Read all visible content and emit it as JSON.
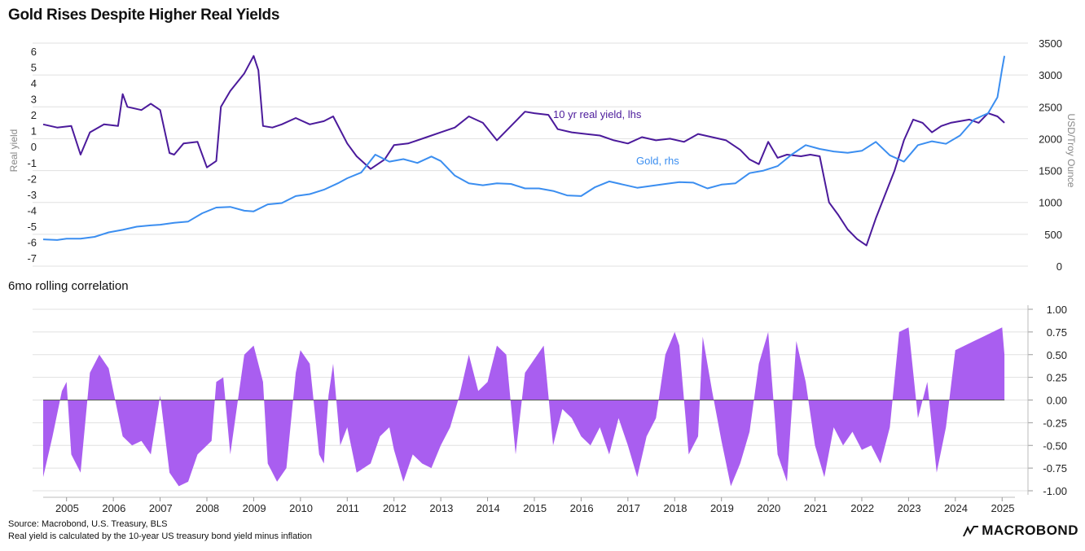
{
  "title": "Gold Rises Despite Higher Real Yields",
  "subtitle": "6mo rolling correlation",
  "footer": {
    "source": "Source: Macrobond, U.S. Treasury, BLS",
    "note": "Real yield is calculated by the 10-year US treasury bond yield minus inflation"
  },
  "logo": "MACROBOND",
  "colors": {
    "real_yield": "#4b1a9b",
    "gold": "#3b8ef0",
    "correlation": "#a95ef0",
    "grid": "#e0e0e0",
    "axis_text": "#222222",
    "axis_label": "#888888"
  },
  "chart_data": [
    {
      "type": "line",
      "ylabel_left": "Real yield",
      "ylabel_right": "USD/Troy Ounce",
      "ylim_left": [
        -7.5,
        6.5
      ],
      "ylim_right": [
        0,
        3500
      ],
      "yticks_left": [
        "6",
        "5",
        "4",
        "3",
        "2",
        "1",
        "0",
        "-1",
        "-2",
        "-3",
        "-4",
        "-5",
        "-6",
        "-7"
      ],
      "yticks_right": [
        "3500",
        "3000",
        "2500",
        "2000",
        "1500",
        "1000",
        "500",
        "0"
      ],
      "annotations": [
        "10 yr real yield, lhs",
        "Gold, rhs"
      ],
      "series": [
        {
          "name": "10 yr real yield, lhs",
          "axis": "left",
          "x": [
            2004.5,
            2004.8,
            2005.1,
            2005.3,
            2005.5,
            2005.8,
            2006.1,
            2006.2,
            2006.3,
            2006.6,
            2006.8,
            2007.0,
            2007.2,
            2007.3,
            2007.5,
            2007.8,
            2008.0,
            2008.2,
            2008.3,
            2008.5,
            2008.8,
            2009.0,
            2009.1,
            2009.2,
            2009.4,
            2009.6,
            2009.9,
            2010.2,
            2010.5,
            2010.7,
            2011.0,
            2011.2,
            2011.5,
            2011.8,
            2012.0,
            2012.3,
            2012.7,
            2013.0,
            2013.3,
            2013.6,
            2013.9,
            2014.2,
            2014.5,
            2014.8,
            2015.0,
            2015.3,
            2015.5,
            2015.8,
            2016.1,
            2016.4,
            2016.7,
            2017.0,
            2017.3,
            2017.6,
            2017.9,
            2018.2,
            2018.5,
            2018.8,
            2019.1,
            2019.4,
            2019.6,
            2019.8,
            2020.0,
            2020.2,
            2020.4,
            2020.7,
            2020.9,
            2021.1,
            2021.3,
            2021.5,
            2021.7,
            2021.9,
            2022.1,
            2022.3,
            2022.5,
            2022.7,
            2022.9,
            2023.1,
            2023.3,
            2023.5,
            2023.7,
            2023.9,
            2024.1,
            2024.3,
            2024.5,
            2024.7,
            2024.9,
            2025.05
          ],
          "values": [
            1.4,
            1.2,
            1.3,
            -0.5,
            0.9,
            1.4,
            1.3,
            3.3,
            2.5,
            2.3,
            2.7,
            2.3,
            -0.4,
            -0.5,
            0.2,
            0.3,
            -1.3,
            -0.9,
            2.5,
            3.5,
            4.6,
            5.7,
            4.8,
            1.3,
            1.2,
            1.4,
            1.8,
            1.4,
            1.6,
            1.9,
            0.2,
            -0.6,
            -1.4,
            -0.8,
            0.1,
            0.2,
            0.6,
            0.9,
            1.2,
            1.9,
            1.5,
            0.4,
            1.3,
            2.2,
            2.1,
            2.0,
            1.1,
            0.9,
            0.8,
            0.7,
            0.4,
            0.2,
            0.6,
            0.4,
            0.5,
            0.3,
            0.8,
            0.6,
            0.4,
            -0.2,
            -0.8,
            -1.1,
            0.3,
            -0.7,
            -0.5,
            -0.6,
            -0.5,
            -0.6,
            -3.5,
            -4.3,
            -5.2,
            -5.8,
            -6.2,
            -4.5,
            -3.0,
            -1.5,
            0.4,
            1.7,
            1.5,
            0.9,
            1.3,
            1.5,
            1.6,
            1.7,
            1.5,
            2.1,
            1.9,
            1.5
          ]
        },
        {
          "name": "Gold, rhs",
          "axis": "right",
          "x": [
            2004.5,
            2004.8,
            2005.0,
            2005.3,
            2005.6,
            2005.9,
            2006.2,
            2006.5,
            2006.8,
            2007.0,
            2007.3,
            2007.6,
            2007.9,
            2008.2,
            2008.5,
            2008.8,
            2009.0,
            2009.3,
            2009.6,
            2009.9,
            2010.2,
            2010.5,
            2010.8,
            2011.0,
            2011.3,
            2011.6,
            2011.9,
            2012.2,
            2012.5,
            2012.8,
            2013.0,
            2013.3,
            2013.6,
            2013.9,
            2014.2,
            2014.5,
            2014.8,
            2015.1,
            2015.4,
            2015.7,
            2016.0,
            2016.3,
            2016.6,
            2016.9,
            2017.2,
            2017.5,
            2017.8,
            2018.1,
            2018.4,
            2018.7,
            2019.0,
            2019.3,
            2019.6,
            2019.9,
            2020.2,
            2020.5,
            2020.8,
            2021.1,
            2021.4,
            2021.7,
            2022.0,
            2022.3,
            2022.6,
            2022.9,
            2023.2,
            2023.5,
            2023.8,
            2024.1,
            2024.4,
            2024.7,
            2024.9,
            2025.0,
            2025.05
          ],
          "values": [
            420,
            410,
            430,
            430,
            460,
            530,
            570,
            620,
            640,
            650,
            680,
            700,
            830,
            920,
            930,
            870,
            860,
            970,
            990,
            1100,
            1130,
            1200,
            1300,
            1380,
            1470,
            1750,
            1640,
            1680,
            1620,
            1720,
            1650,
            1420,
            1300,
            1270,
            1300,
            1290,
            1220,
            1220,
            1180,
            1110,
            1100,
            1240,
            1330,
            1280,
            1230,
            1260,
            1290,
            1320,
            1310,
            1220,
            1280,
            1300,
            1460,
            1500,
            1570,
            1750,
            1900,
            1840,
            1800,
            1780,
            1810,
            1950,
            1740,
            1640,
            1900,
            1960,
            1920,
            2050,
            2300,
            2400,
            2650,
            3100,
            3300
          ]
        }
      ]
    },
    {
      "type": "area",
      "ylim": [
        -1.0,
        1.0
      ],
      "yticks": [
        "1.00",
        "0.75",
        "0.50",
        "0.25",
        "0.00",
        "-0.25",
        "-0.50",
        "-0.75",
        "-1.00"
      ],
      "xticks": [
        "2005",
        "2006",
        "2007",
        "2008",
        "2009",
        "2010",
        "2011",
        "2012",
        "2013",
        "2014",
        "2015",
        "2016",
        "2017",
        "2018",
        "2019",
        "2020",
        "2021",
        "2022",
        "2023",
        "2024",
        "2025"
      ],
      "series": [
        {
          "name": "6mo rolling correlation",
          "x": [
            2004.5,
            2004.7,
            2004.9,
            2005.0,
            2005.1,
            2005.3,
            2005.5,
            2005.7,
            2005.9,
            2006.0,
            2006.2,
            2006.4,
            2006.6,
            2006.8,
            2007.0,
            2007.2,
            2007.4,
            2007.6,
            2007.8,
            2008.0,
            2008.1,
            2008.2,
            2008.35,
            2008.5,
            2008.8,
            2009.0,
            2009.2,
            2009.3,
            2009.5,
            2009.7,
            2009.9,
            2010.0,
            2010.2,
            2010.4,
            2010.5,
            2010.6,
            2010.7,
            2010.85,
            2011.0,
            2011.2,
            2011.5,
            2011.7,
            2011.9,
            2012.0,
            2012.2,
            2012.4,
            2012.6,
            2012.8,
            2013.0,
            2013.2,
            2013.4,
            2013.6,
            2013.8,
            2014.0,
            2014.2,
            2014.4,
            2014.6,
            2014.8,
            2015.0,
            2015.2,
            2015.4,
            2015.6,
            2015.8,
            2016.0,
            2016.2,
            2016.4,
            2016.6,
            2016.8,
            2017.0,
            2017.2,
            2017.4,
            2017.6,
            2017.8,
            2018.0,
            2018.1,
            2018.3,
            2018.5,
            2018.6,
            2018.8,
            2019.0,
            2019.2,
            2019.4,
            2019.6,
            2019.8,
            2020.0,
            2020.2,
            2020.4,
            2020.6,
            2020.8,
            2021.0,
            2021.2,
            2021.4,
            2021.6,
            2021.8,
            2022.0,
            2022.2,
            2022.4,
            2022.6,
            2022.8,
            2023.0,
            2023.2,
            2023.4,
            2023.6,
            2023.8,
            2024.0,
            2024.2,
            2024.4,
            2024.6,
            2024.8,
            2025.0,
            2025.05
          ],
          "values": [
            -0.85,
            -0.4,
            0.1,
            0.2,
            -0.6,
            -0.8,
            0.3,
            0.5,
            0.35,
            0.1,
            -0.4,
            -0.5,
            -0.45,
            -0.6,
            0.05,
            -0.8,
            -0.95,
            -0.9,
            -0.6,
            -0.5,
            -0.45,
            0.2,
            0.25,
            -0.6,
            0.5,
            0.6,
            0.2,
            -0.7,
            -0.9,
            -0.75,
            0.3,
            0.55,
            0.4,
            -0.6,
            -0.7,
            0.05,
            0.4,
            -0.5,
            -0.3,
            -0.8,
            -0.7,
            -0.4,
            -0.3,
            -0.55,
            -0.9,
            -0.6,
            -0.7,
            -0.75,
            -0.5,
            -0.3,
            0.05,
            0.5,
            0.1,
            0.2,
            0.6,
            0.5,
            -0.6,
            0.3,
            0.45,
            0.6,
            -0.5,
            -0.1,
            -0.2,
            -0.4,
            -0.5,
            -0.3,
            -0.6,
            -0.2,
            -0.5,
            -0.85,
            -0.4,
            -0.2,
            0.5,
            0.75,
            0.6,
            -0.6,
            -0.4,
            0.7,
            0.1,
            -0.45,
            -0.95,
            -0.7,
            -0.35,
            0.4,
            0.75,
            -0.6,
            -0.9,
            0.65,
            0.2,
            -0.5,
            -0.85,
            -0.3,
            -0.5,
            -0.35,
            -0.55,
            -0.5,
            -0.7,
            -0.3,
            0.75,
            0.8,
            -0.2,
            0.2,
            -0.8,
            -0.3,
            0.55,
            0.6,
            0.65,
            0.7,
            0.75,
            0.8,
            0.5
          ]
        }
      ]
    }
  ]
}
